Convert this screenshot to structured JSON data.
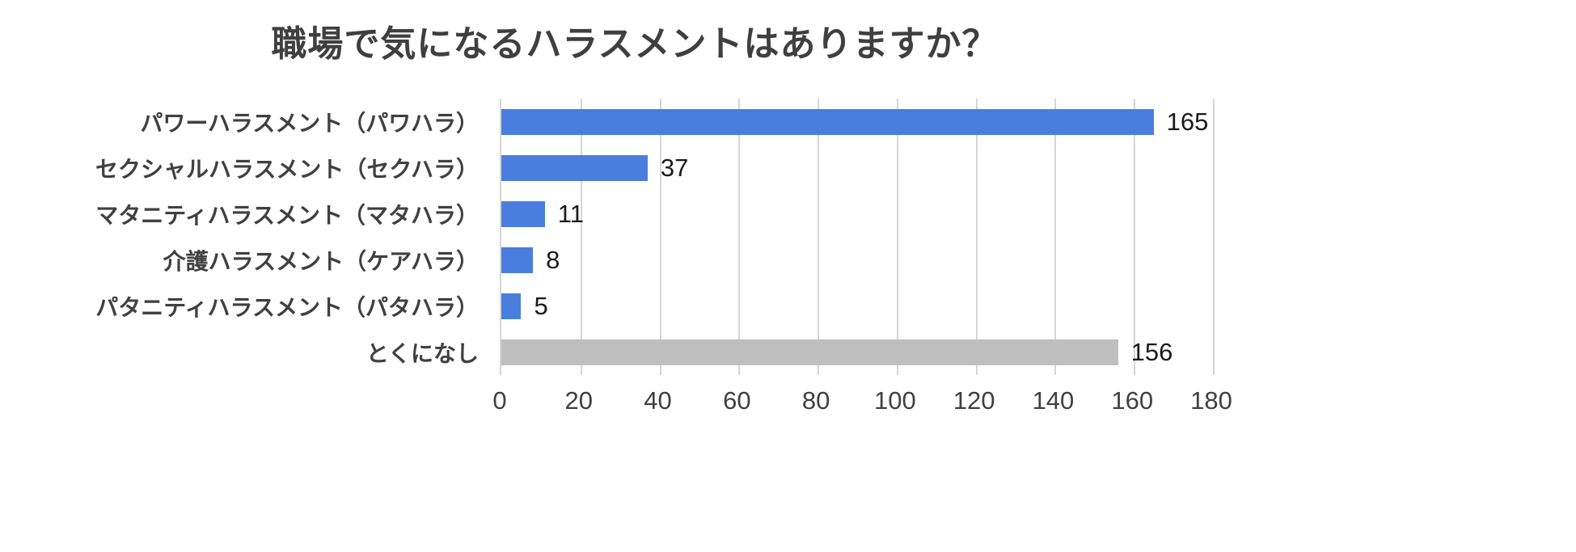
{
  "chart_data": {
    "type": "bar",
    "orientation": "horizontal",
    "title": "職場で気になるハラスメントはありますか？",
    "categories": [
      "パワーハラスメント（パワハラ）",
      "セクシャルハラスメント（セクハラ）",
      "マタニティハラスメント（マタハラ）",
      "介護ハラスメント（ケアハラ）",
      "パタニティハラスメント（パタハラ）",
      "とくになし"
    ],
    "values": [
      165,
      37,
      11,
      8,
      5,
      156
    ],
    "bar_colors": [
      "#4a7ede",
      "#4a7ede",
      "#4a7ede",
      "#4a7ede",
      "#4a7ede",
      "#bfbfbf"
    ],
    "xlim": [
      0,
      180
    ],
    "xticks": [
      0,
      20,
      40,
      60,
      80,
      100,
      120,
      140,
      160,
      180
    ],
    "grid": true,
    "legend": "none",
    "colors": {
      "bar_blue": "#4a7ede",
      "bar_gray": "#bfbfbf",
      "gridline": "#d6d6d6",
      "title_text": "#3f3f3f",
      "category_text": "#404040",
      "value_text": "#1a1a1a"
    }
  }
}
